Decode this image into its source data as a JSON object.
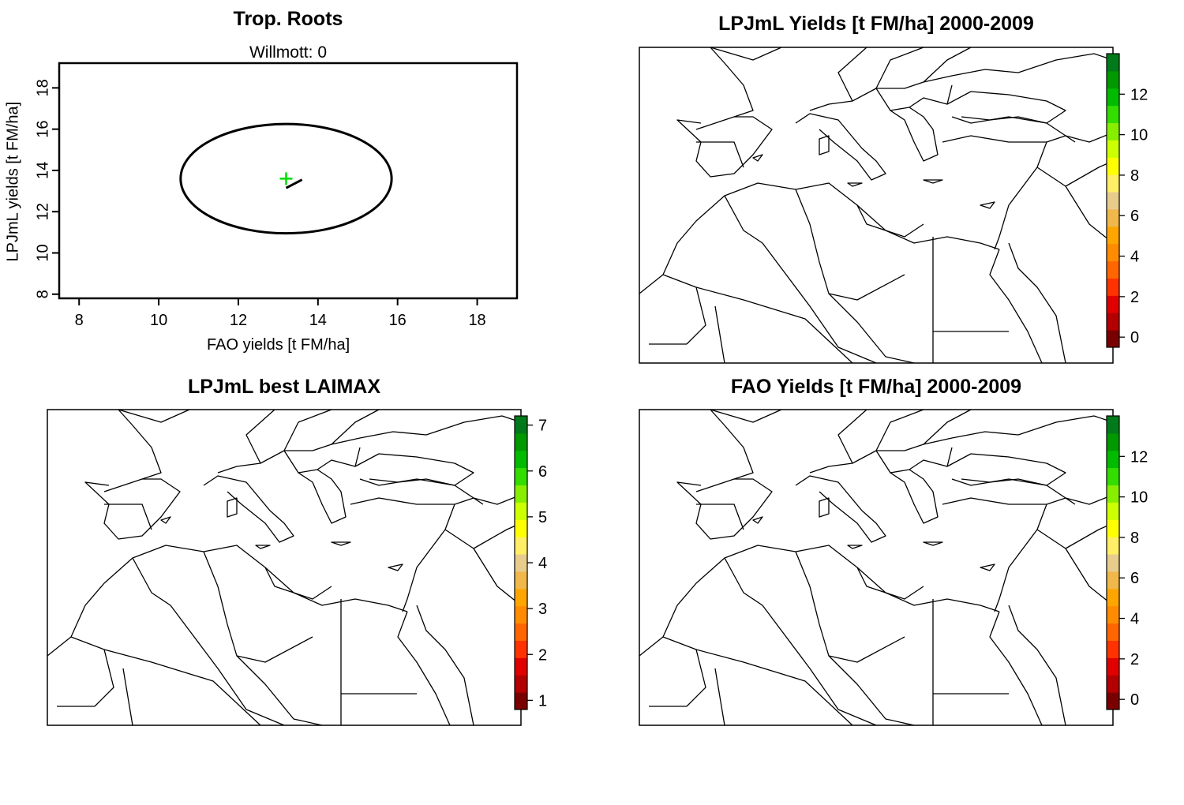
{
  "chart_data": [
    {
      "type": "scatter",
      "title": "Trop. Roots",
      "subtitle_label": "Willmott:",
      "subtitle_value": "0",
      "xlabel": "FAO yields [t FM/ha]",
      "ylabel": "LPJmL yields [t FM/ha]",
      "xlim": [
        7.5,
        19
      ],
      "ylim": [
        7.8,
        19.2
      ],
      "xticks": [
        8,
        10,
        12,
        14,
        16,
        18
      ],
      "yticks": [
        8,
        10,
        12,
        14,
        16,
        18
      ],
      "circle": {
        "cx": 13.2,
        "cy": 13.6,
        "r": 2.65
      },
      "segment": {
        "x1": 13.2,
        "y1": 13.15,
        "x2": 13.6,
        "y2": 13.55
      },
      "point": {
        "x": 13.2,
        "y": 13.6,
        "color": "#00dd00"
      }
    },
    {
      "type": "heatmap",
      "title": "LPJmL Yields [t FM/ha] 2000-2009",
      "colorbar": {
        "min": -0.5,
        "max": 14,
        "ticks": [
          0,
          2,
          4,
          6,
          8,
          10,
          12
        ]
      }
    },
    {
      "type": "heatmap",
      "title": "LPJmL best LAIMAX",
      "colorbar": {
        "min": 0.8,
        "max": 7.2,
        "ticks": [
          1,
          2,
          3,
          4,
          5,
          6,
          7
        ]
      }
    },
    {
      "type": "heatmap",
      "title": "FAO Yields [t FM/ha] 2000-2009",
      "colorbar": {
        "min": -0.5,
        "max": 14,
        "ticks": [
          0,
          2,
          4,
          6,
          8,
          10,
          12
        ]
      }
    }
  ],
  "colors": {
    "ramp": [
      "#7a0000",
      "#b30000",
      "#e00000",
      "#ff3300",
      "#ff6600",
      "#ff8c00",
      "#ffa500",
      "#f0b84a",
      "#e8cc8c",
      "#ffee66",
      "#ffff00",
      "#ccff00",
      "#88ee00",
      "#33dd00",
      "#00bb00",
      "#009900",
      "#007a1a"
    ],
    "line": "#000000"
  }
}
